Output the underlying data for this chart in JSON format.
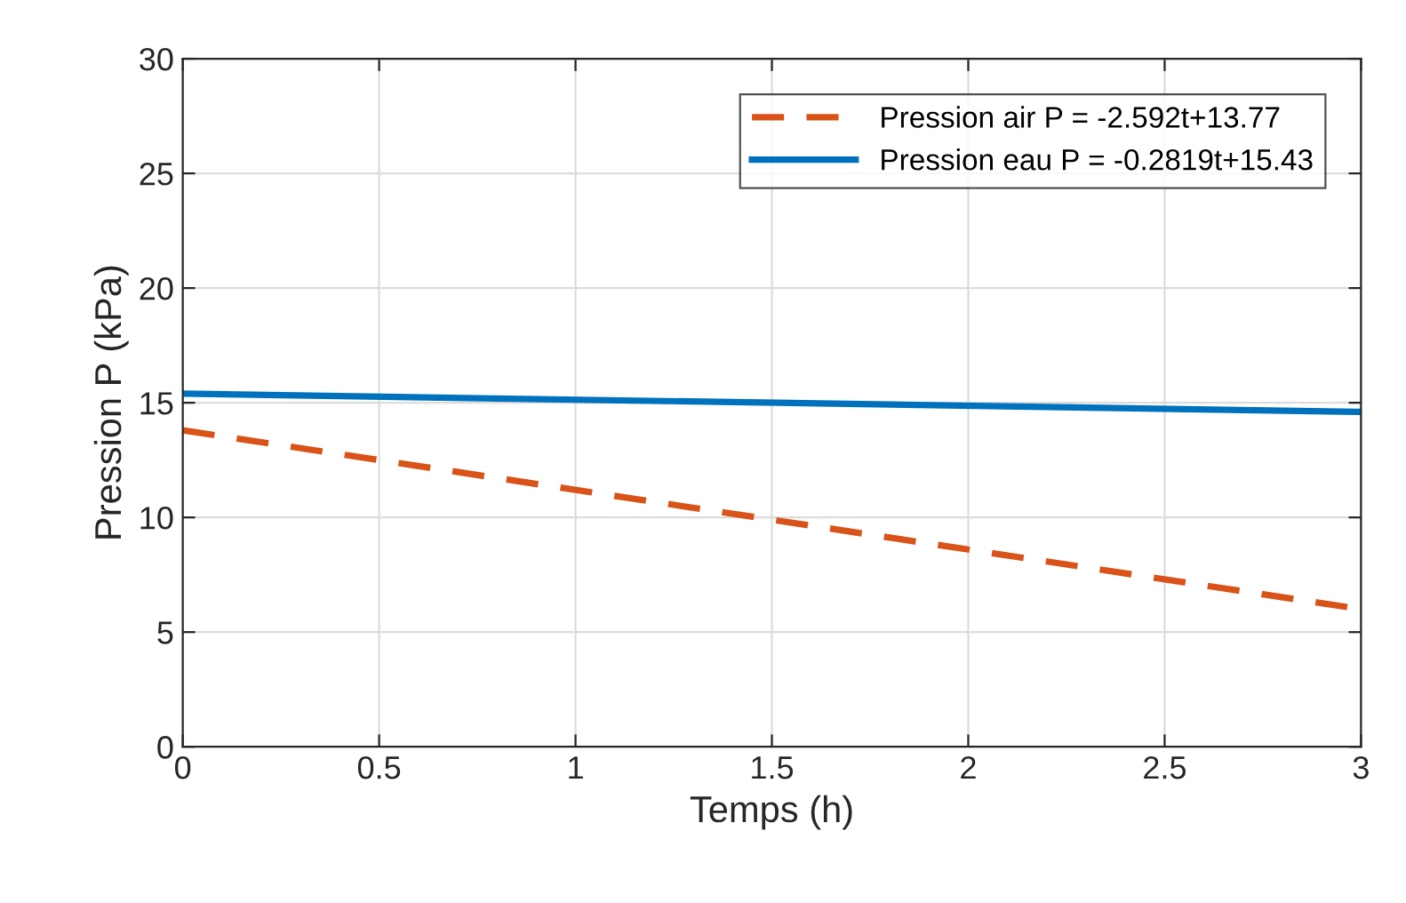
{
  "chart_data": {
    "type": "line",
    "xlabel": "Temps (h)",
    "ylabel": "Pression P (kPa)",
    "x": [
      0,
      3
    ],
    "series": [
      {
        "name": "Pression air P = -2.592t+13.77",
        "color": "#d95319",
        "line_style": "dashed",
        "values": [
          13.8,
          6.0
        ]
      },
      {
        "name": "Pression eau P = -0.2819t+15.43",
        "color": "#0072bd",
        "line_style": "solid",
        "values": [
          15.4,
          14.6
        ]
      }
    ],
    "xlim": [
      0,
      3
    ],
    "xticks": [
      0,
      0.5,
      1,
      1.5,
      2,
      2.5,
      3
    ],
    "ylim": [
      0,
      30
    ],
    "yticks": [
      0,
      5,
      10,
      15,
      20,
      25,
      30
    ],
    "grid": true,
    "legend": "top right",
    "marker": "none"
  }
}
